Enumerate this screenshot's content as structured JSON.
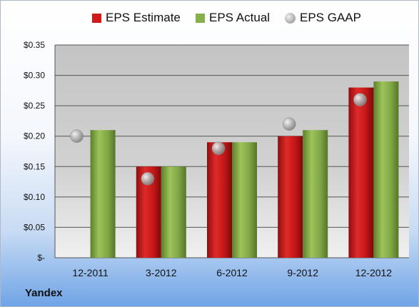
{
  "company": "Yandex",
  "chart_data": {
    "type": "bar",
    "categories": [
      "12-2011",
      "3-2012",
      "6-2012",
      "9-2012",
      "12-2012"
    ],
    "series": [
      {
        "name": "EPS Estimate",
        "color": "#d11a1a",
        "values": [
          null,
          0.15,
          0.19,
          0.2,
          0.28
        ]
      },
      {
        "name": "EPS Actual",
        "color": "#86b04a",
        "values": [
          0.21,
          0.15,
          0.19,
          0.21,
          0.29
        ]
      },
      {
        "name": "EPS GAAP",
        "color": "#a9a9a9",
        "marker": "sphere",
        "values": [
          0.2,
          0.13,
          0.18,
          0.22,
          0.26
        ]
      }
    ],
    "ylim": [
      0,
      0.35
    ],
    "yticks": [
      0,
      0.05,
      0.1,
      0.15,
      0.2,
      0.25,
      0.3,
      0.35
    ],
    "ytick_labels": [
      "$-",
      "$0.05",
      "$0.10",
      "$0.15",
      "$0.20",
      "$0.25",
      "$0.30",
      "$0.35"
    ],
    "grid": true,
    "legend": "top"
  }
}
